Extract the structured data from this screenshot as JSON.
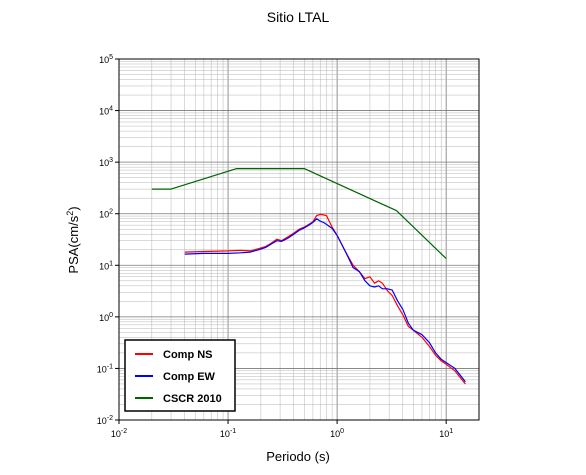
{
  "chart_data": {
    "type": "line",
    "title": "Sitio LTAL",
    "xlabel": "Periodo (s)",
    "ylabel": "PSA(cm/s²)",
    "ylabel_base": "PSA(cm/s",
    "ylabel_sup": "2",
    "ylabel_end": ")",
    "x_scale": "log",
    "y_scale": "log",
    "xlim": [
      0.01,
      20
    ],
    "ylim": [
      0.01,
      100000
    ],
    "grid": true,
    "legend_position": "bottom-left",
    "x_ticks": [
      {
        "base": "10",
        "exp": "-2",
        "value": 0.01
      },
      {
        "base": "10",
        "exp": "-1",
        "value": 0.1
      },
      {
        "base": "10",
        "exp": "0",
        "value": 1
      },
      {
        "base": "10",
        "exp": "1",
        "value": 10
      }
    ],
    "y_ticks": [
      {
        "base": "10",
        "exp": "-2",
        "value": 0.01
      },
      {
        "base": "10",
        "exp": "-1",
        "value": 0.1
      },
      {
        "base": "10",
        "exp": "0",
        "value": 1
      },
      {
        "base": "10",
        "exp": "1",
        "value": 10
      },
      {
        "base": "10",
        "exp": "2",
        "value": 100
      },
      {
        "base": "10",
        "exp": "3",
        "value": 1000
      },
      {
        "base": "10",
        "exp": "4",
        "value": 10000
      },
      {
        "base": "10",
        "exp": "5",
        "value": 100000
      }
    ],
    "series": [
      {
        "name": "Comp NS",
        "color": "#ff0000",
        "x": [
          0.04,
          0.06,
          0.1,
          0.13,
          0.16,
          0.19,
          0.22,
          0.25,
          0.28,
          0.31,
          0.35,
          0.4,
          0.45,
          0.5,
          0.55,
          0.6,
          0.65,
          0.7,
          0.75,
          0.8,
          0.9,
          1.0,
          1.2,
          1.4,
          1.6,
          1.8,
          2.0,
          2.2,
          2.4,
          2.6,
          2.9,
          3.2,
          3.6,
          4.0,
          4.5,
          5.0,
          6.0,
          7.0,
          8.0,
          9.0,
          10.0,
          12.0,
          15.0
        ],
        "y": [
          18,
          18.5,
          19,
          19.5,
          19,
          21,
          23,
          27,
          32,
          30,
          35,
          42,
          50,
          55,
          62,
          70,
          92,
          97,
          95,
          92,
          55,
          38,
          18,
          10,
          7.5,
          5.5,
          6,
          4.5,
          5,
          4.5,
          3.2,
          2.6,
          1.6,
          1.1,
          0.65,
          0.55,
          0.4,
          0.27,
          0.18,
          0.14,
          0.12,
          0.09,
          0.05
        ]
      },
      {
        "name": "Comp EW",
        "color": "#0000ff",
        "x": [
          0.04,
          0.06,
          0.1,
          0.13,
          0.16,
          0.19,
          0.22,
          0.25,
          0.28,
          0.31,
          0.35,
          0.4,
          0.45,
          0.5,
          0.55,
          0.6,
          0.65,
          0.7,
          0.75,
          0.8,
          0.9,
          1.0,
          1.2,
          1.4,
          1.6,
          1.8,
          2.0,
          2.2,
          2.4,
          2.6,
          2.9,
          3.2,
          3.6,
          4.0,
          4.5,
          5.0,
          6.0,
          7.0,
          8.0,
          9.0,
          10.0,
          12.0,
          15.0
        ],
        "y": [
          16.5,
          17,
          17,
          17.5,
          18,
          20,
          22,
          26,
          30,
          29,
          33,
          40,
          48,
          53,
          60,
          68,
          80,
          72,
          68,
          62,
          52,
          38,
          18,
          9,
          7.5,
          5,
          4,
          3.8,
          4,
          3.5,
          3.5,
          3.3,
          2.0,
          1.4,
          0.75,
          0.55,
          0.45,
          0.32,
          0.2,
          0.15,
          0.13,
          0.1,
          0.055
        ]
      },
      {
        "name": "CSCR 2010",
        "color": "#006400",
        "x": [
          0.02,
          0.03,
          0.12,
          0.5,
          3.5,
          10
        ],
        "y": [
          300,
          300,
          750,
          750,
          115,
          13.5
        ]
      }
    ]
  }
}
